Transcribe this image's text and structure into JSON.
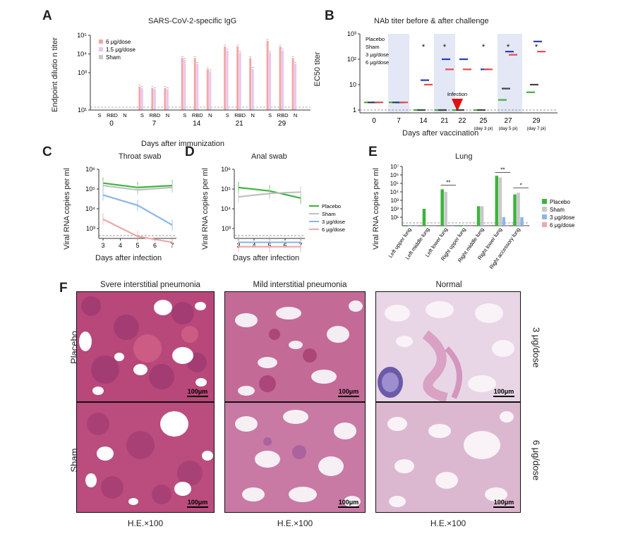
{
  "panels": {
    "A": {
      "label": "A",
      "title": "SARS-CoV-2-specific IgG",
      "ylabel": "Endpoint dilutio n titer",
      "xlabel": "Days after immunization",
      "legend": [
        "6 μg/dose",
        "1.5 μg/dose",
        "Sham"
      ],
      "antigens": [
        "S",
        "RBD",
        "N"
      ],
      "days": [
        "0",
        "7",
        "14",
        "21",
        "29"
      ],
      "yticks": [
        "10¹",
        "10³",
        "10⁴",
        "10⁵"
      ]
    },
    "B": {
      "label": "B",
      "title": "NAb titer before & after challenge",
      "ylabel": "EC50 titer",
      "xlabel": "Days after vaccination",
      "legend": [
        "Placebo",
        "Sham",
        "3 μg/dose",
        "6 μg/dose"
      ],
      "days": [
        "0",
        "7",
        "14",
        "21",
        "22",
        "25",
        "27",
        "29"
      ],
      "sublabels": [
        "(day 3 pi)",
        "(day 5 pi)",
        "(day 7 pi)"
      ],
      "infection": "Infection",
      "yticks": [
        "1",
        "10",
        "10²",
        "10³"
      ],
      "star": "*"
    },
    "C": {
      "label": "C",
      "title": "Throat swab",
      "ylabel": "Viral RNA copies per ml",
      "xlabel": "Days after infection",
      "xticks": [
        "3",
        "4",
        "5",
        "6",
        "7"
      ],
      "yticks": [
        "10³",
        "10⁴",
        "10⁵",
        "10⁶"
      ]
    },
    "D": {
      "label": "D",
      "title": "Anal swab",
      "ylabel": "Viral RNA copies per ml",
      "xlabel": "Days after infection",
      "xticks": [
        "3",
        "4",
        "5",
        "6",
        "7"
      ],
      "yticks": [
        "10³",
        "10⁴",
        "10⁵",
        "10⁶"
      ],
      "legend": [
        "Placebo",
        "Sham",
        "3 μg/dose",
        "6 μg/dose"
      ]
    },
    "E": {
      "label": "E",
      "title": "Lung",
      "ylabel": "Viral RNA copies per ml",
      "categories": [
        "Left upper lung",
        "Left middle lung",
        "Left lower lung",
        "Right upper lung",
        "Right middle lung",
        "Right lower lung",
        "Right accessory lung"
      ],
      "legend": [
        "Placebo",
        "Sham",
        "3 μg/dose",
        "6 μg/dose"
      ],
      "yticks": [
        "10",
        "10¹",
        "10²",
        "10³",
        "10⁴",
        "10⁵",
        "10⁶",
        "10⁷"
      ],
      "sig": [
        "**",
        "**",
        "*"
      ]
    },
    "F": {
      "label": "F",
      "columns": [
        "Svere interstitial pneumonia",
        "Mild interstitial pneumonia",
        "Normal"
      ],
      "rows_left": [
        "Placebo",
        "Sham"
      ],
      "rows_right": [
        "3 μg/dose",
        "6 μg/dose"
      ],
      "scalebar": "100μm",
      "magnification": "H.E.×100"
    }
  },
  "chart_data": [
    {
      "type": "bar",
      "title": "SARS-CoV-2-specific IgG",
      "ylabel": "Endpoint dilutio n titer",
      "xlabel": "Days after immunization",
      "ylog": true,
      "categories": [
        "D0 S",
        "D0 RBD",
        "D0 N",
        "D7 S",
        "D7 RBD",
        "D7 N",
        "D14 S",
        "D14 RBD",
        "D14 N",
        "D21 S",
        "D21 RBD",
        "D21 N",
        "D29 S",
        "D29 RBD",
        "D29 N"
      ],
      "series": [
        {
          "name": "6 μg/dose",
          "color": "#f4a6a6",
          "values": [
            10,
            10,
            10,
            180,
            150,
            150,
            6000,
            6000,
            1500,
            25000,
            25000,
            6000,
            50000,
            25000,
            6000
          ]
        },
        {
          "name": "1.5 μg/dose",
          "color": "#e6c8f0",
          "values": [
            10,
            10,
            10,
            150,
            130,
            130,
            5000,
            3000,
            1200,
            15000,
            12000,
            1600,
            12000,
            15000,
            3000
          ]
        },
        {
          "name": "Sham",
          "color": "#c8c8c8",
          "values": [
            10,
            10,
            10,
            10,
            10,
            10,
            10,
            10,
            10,
            10,
            10,
            10,
            10,
            10,
            10
          ]
        }
      ]
    },
    {
      "type": "scatter",
      "title": "NAb titer before & after challenge",
      "ylabel": "EC50 titer",
      "xlabel": "Days after vaccination",
      "ylog": true,
      "x": [
        "0",
        "7",
        "14",
        "21",
        "22",
        "25",
        "27",
        "29"
      ],
      "series": [
        {
          "name": "Placebo",
          "color": "#3cb43c",
          "values": [
            2,
            2,
            1,
            1,
            1,
            1,
            2.5,
            5
          ]
        },
        {
          "name": "Sham",
          "color": "#444444",
          "values": [
            2,
            2,
            1,
            1,
            1,
            1,
            7,
            10
          ]
        },
        {
          "name": "3 μg/dose",
          "color": "#2340b4",
          "values": [
            2,
            2,
            15,
            100,
            100,
            40,
            200,
            500
          ]
        },
        {
          "name": "6 μg/dose",
          "color": "#e05050",
          "values": [
            2,
            2,
            10,
            40,
            40,
            40,
            150,
            200
          ]
        }
      ]
    },
    {
      "type": "line",
      "title": "Throat swab",
      "xlabel": "Days after infection",
      "ylabel": "Viral RNA copies per ml",
      "ylog": true,
      "x": [
        3,
        5,
        7
      ],
      "series": [
        {
          "name": "Placebo",
          "color": "#3cb43c",
          "values": [
            200000,
            120000,
            150000
          ]
        },
        {
          "name": "Sham",
          "color": "#c0c0c0",
          "values": [
            150000,
            90000,
            120000
          ]
        },
        {
          "name": "3 μg/dose",
          "color": "#8bb6e8",
          "values": [
            50000,
            15000,
            1500
          ]
        },
        {
          "name": "6 μg/dose",
          "color": "#f0a8a8",
          "values": [
            3000,
            400,
            200
          ]
        }
      ]
    },
    {
      "type": "line",
      "title": "Anal swab",
      "xlabel": "Days after infection",
      "ylabel": "Viral RNA copies per ml",
      "ylog": true,
      "x": [
        3,
        5,
        7
      ],
      "series": [
        {
          "name": "Placebo",
          "color": "#3cb43c",
          "values": [
            120000,
            80000,
            35000
          ]
        },
        {
          "name": "Sham",
          "color": "#c0c0c0",
          "values": [
            40000,
            60000,
            70000
          ]
        },
        {
          "name": "3 μg/dose",
          "color": "#8bb6e8",
          "values": [
            200,
            200,
            200
          ]
        },
        {
          "name": "6 μg/dose",
          "color": "#f0a8a8",
          "values": [
            120,
            120,
            120
          ]
        }
      ]
    },
    {
      "type": "bar",
      "title": "Lung",
      "ylabel": "Viral RNA copies per ml",
      "ylog": true,
      "categories": [
        "Left upper lung",
        "Left middle lung",
        "Left lower lung",
        "Right upper lung",
        "Right middle lung",
        "Right lower lung",
        "Right accessory lung"
      ],
      "series": [
        {
          "name": "Placebo",
          "color": "#3cb43c",
          "values": [
            1,
            100,
            20000,
            1,
            200,
            800000,
            5000
          ]
        },
        {
          "name": "Sham",
          "color": "#c8c8c8",
          "values": [
            1,
            1,
            10000,
            1,
            200,
            500000,
            8000
          ]
        },
        {
          "name": "3 μg/dose",
          "color": "#8bb6e8",
          "values": [
            1,
            1,
            1,
            1,
            1,
            10,
            10
          ]
        },
        {
          "name": "6 μg/dose",
          "color": "#f0a8a8",
          "values": [
            1,
            1,
            1,
            1,
            1,
            1,
            1
          ]
        }
      ]
    }
  ]
}
